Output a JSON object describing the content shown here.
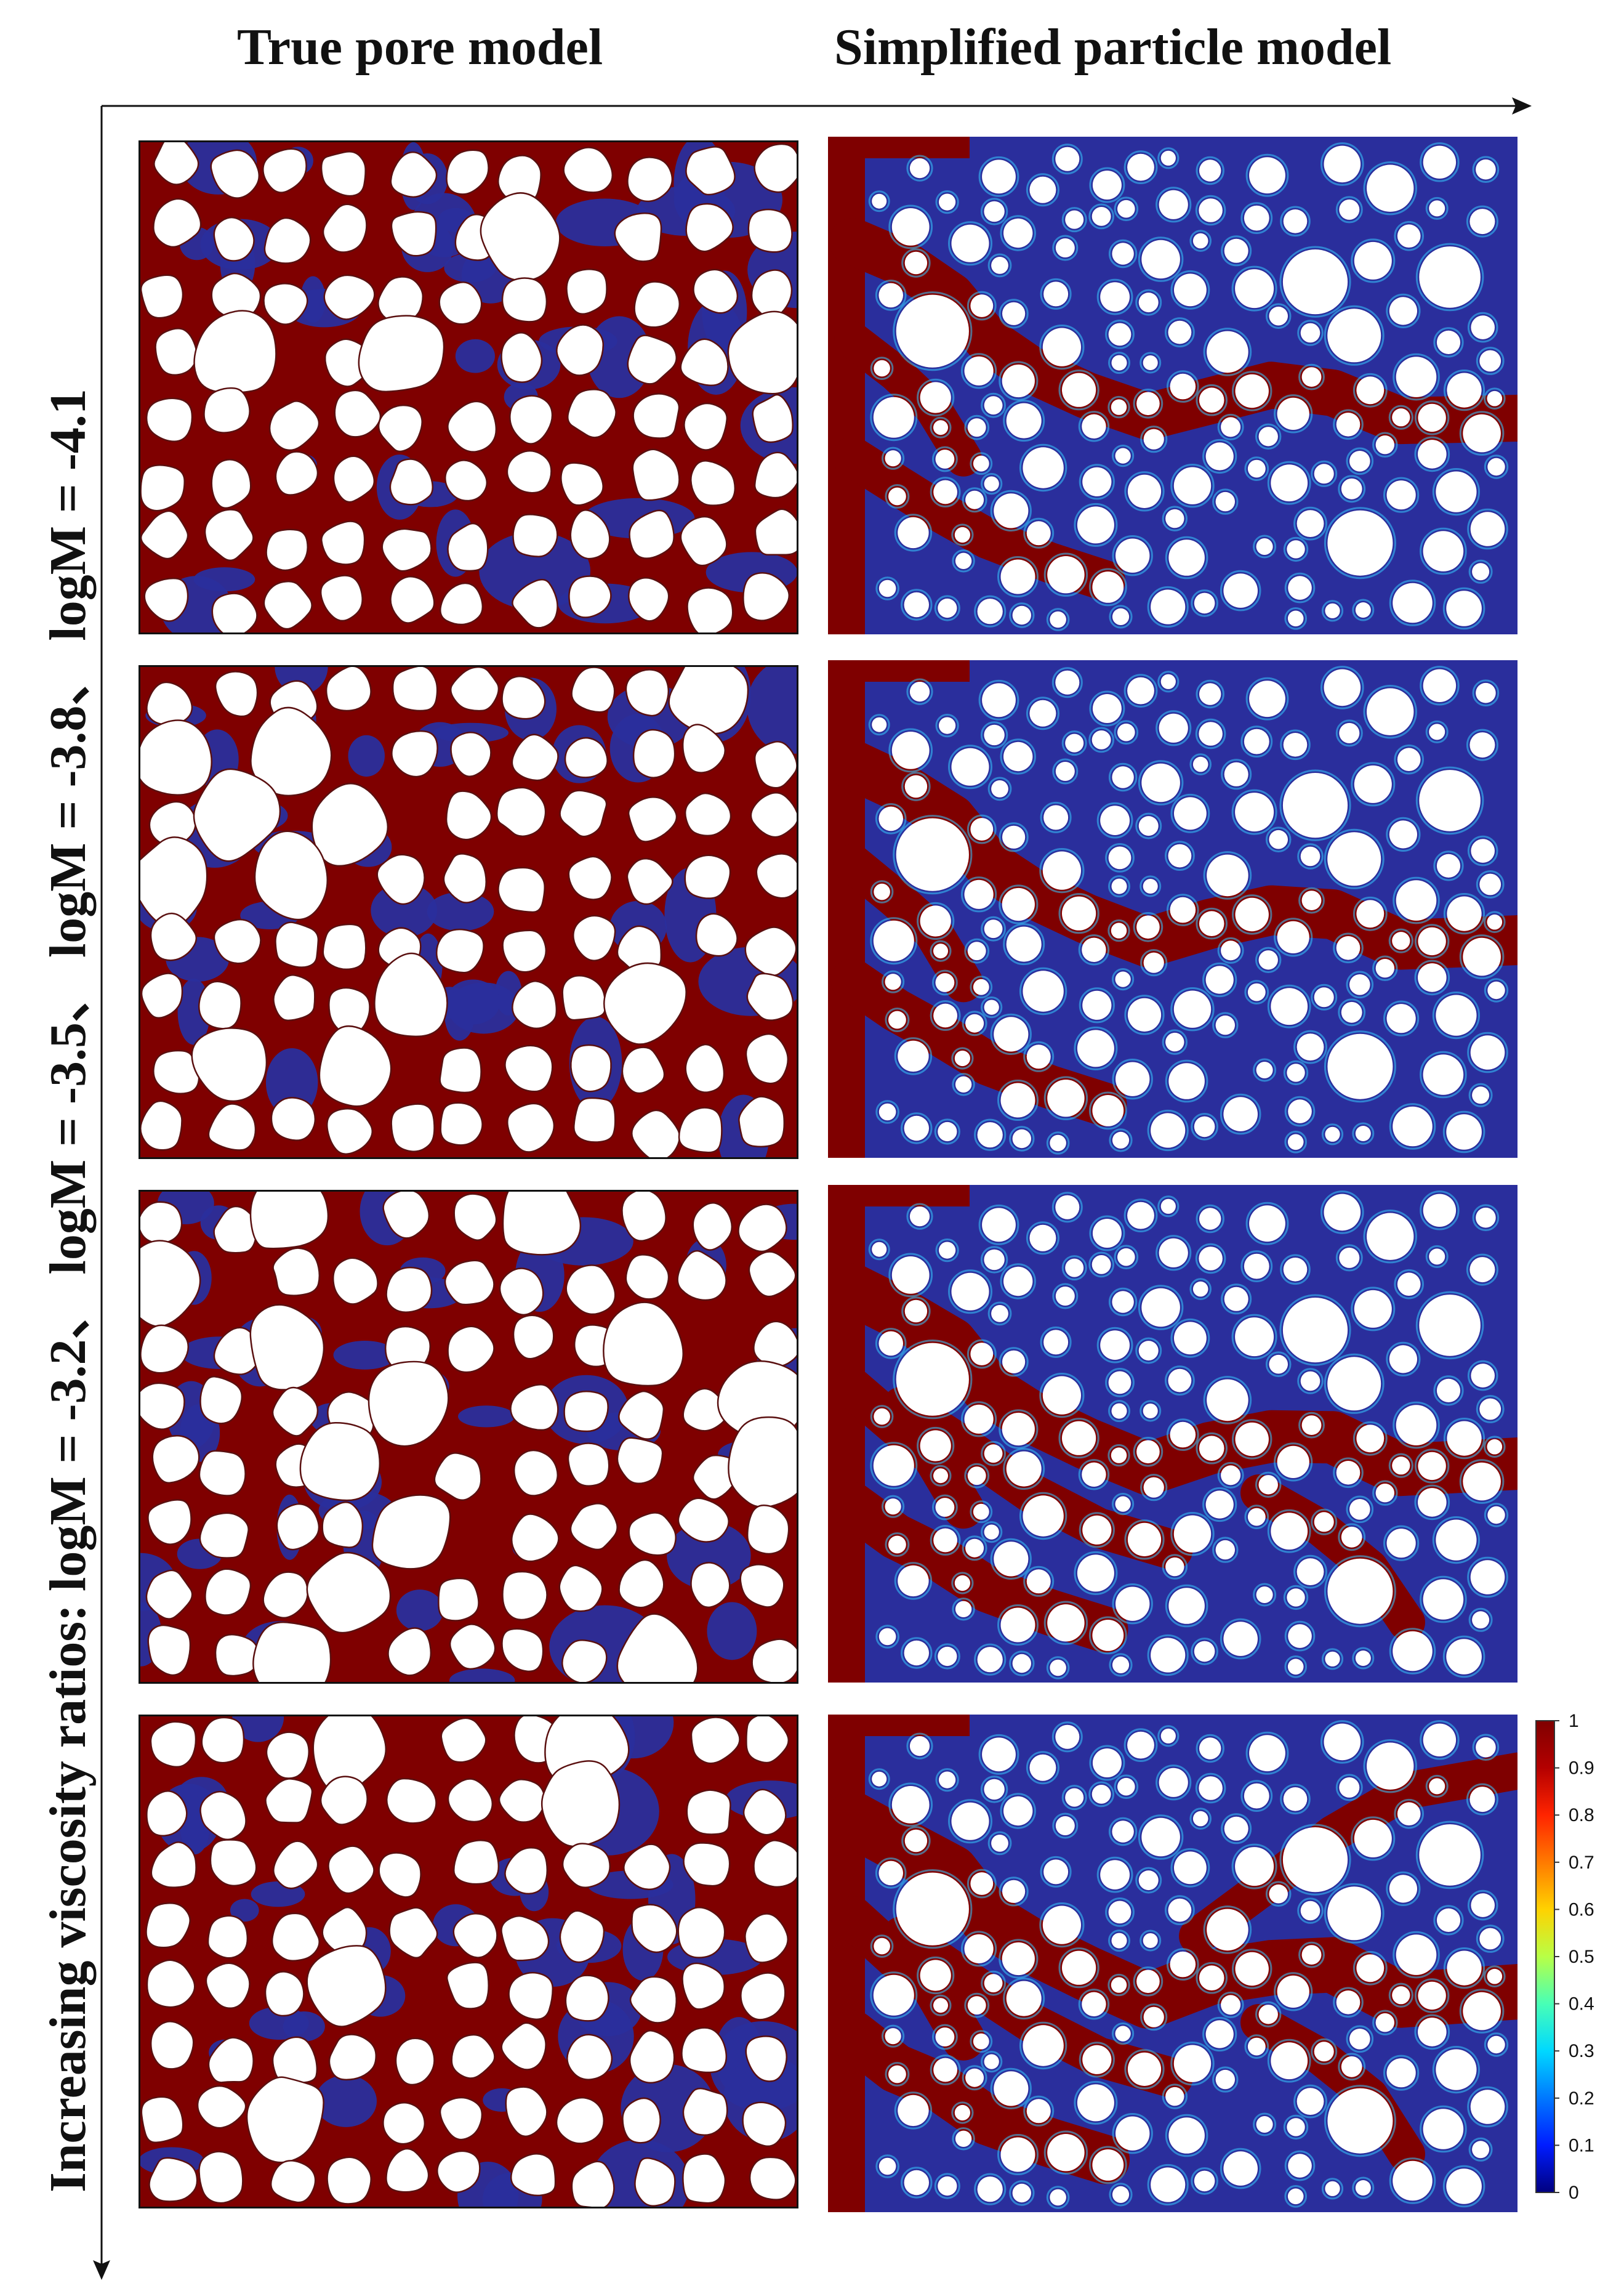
{
  "headers": {
    "left": "True pore model",
    "right": "Simplified particle model"
  },
  "side_label": "Increasing viscosity ratios: logM = -3.2、 logM = -3.5、 logM = -3.8、 logM = -4.1",
  "rows": [
    {
      "logM": -4.1
    },
    {
      "logM": -3.8
    },
    {
      "logM": -3.5
    },
    {
      "logM": -3.2
    }
  ],
  "colorbar": {
    "ticks": [
      "1",
      "0.9",
      "0.8",
      "0.7",
      "0.6",
      "0.5",
      "0.4",
      "0.3",
      "0.2",
      "0.1",
      "0"
    ],
    "colors": [
      "#7f0000",
      "#b40000",
      "#ff2400",
      "#ff7a00",
      "#ffd200",
      "#b8ff46",
      "#48ffb6",
      "#00d8ff",
      "#0078ff",
      "#001cff",
      "#00007f"
    ]
  },
  "palette": {
    "oil": "#7f0000",
    "water": "#2a2e9c",
    "grain": "#ffffff",
    "grain_edge": "#5a1010"
  }
}
